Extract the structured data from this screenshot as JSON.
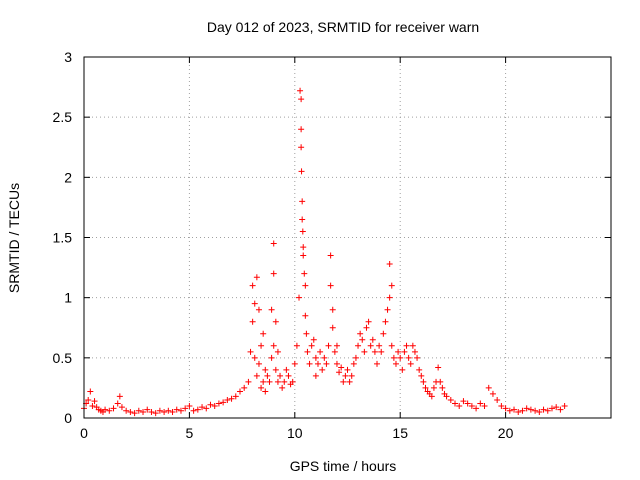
{
  "chart_data": {
    "type": "scatter",
    "title": "Day 012 of 2023, SRMTID for receiver warn",
    "xlabel": "GPS time / hours",
    "ylabel": "SRMTID / TECUs",
    "xlim": [
      0,
      25
    ],
    "ylim": [
      0,
      3
    ],
    "xticks": [
      0,
      5,
      10,
      15,
      20
    ],
    "yticks": [
      0,
      0.5,
      1,
      1.5,
      2,
      2.5,
      3
    ],
    "ytick_labels": [
      "0",
      "0.5",
      "1",
      "1.5",
      "2",
      "2.5",
      "3"
    ],
    "grid": true,
    "marker": "+",
    "series": [
      {
        "name": "SRMTID",
        "color": "#ff0000",
        "x": [
          0.0,
          0.1,
          0.2,
          0.3,
          0.4,
          0.5,
          0.6,
          0.7,
          0.8,
          0.9,
          1.0,
          1.2,
          1.4,
          1.6,
          1.7,
          1.8,
          2.0,
          2.2,
          2.4,
          2.6,
          2.8,
          3.0,
          3.2,
          3.4,
          3.6,
          3.8,
          4.0,
          4.2,
          4.4,
          4.6,
          4.8,
          5.0,
          5.2,
          5.4,
          5.6,
          5.8,
          6.0,
          6.2,
          6.4,
          6.6,
          6.8,
          7.0,
          7.2,
          7.4,
          7.6,
          7.8,
          7.9,
          8.0,
          8.0,
          8.1,
          8.1,
          8.2,
          8.2,
          8.3,
          8.3,
          8.4,
          8.4,
          8.5,
          8.5,
          8.6,
          8.6,
          8.7,
          8.8,
          8.9,
          8.9,
          9.0,
          9.0,
          9.0,
          9.1,
          9.1,
          9.2,
          9.2,
          9.3,
          9.4,
          9.5,
          9.6,
          9.7,
          9.8,
          9.9,
          10.0,
          10.1,
          10.2,
          10.25,
          10.3,
          10.3,
          10.3,
          10.32,
          10.35,
          10.35,
          10.38,
          10.4,
          10.4,
          10.45,
          10.5,
          10.5,
          10.55,
          10.6,
          10.7,
          10.8,
          10.9,
          11.0,
          11.0,
          11.1,
          11.2,
          11.3,
          11.4,
          11.5,
          11.6,
          11.7,
          11.7,
          11.8,
          11.8,
          11.9,
          12.0,
          12.0,
          12.1,
          12.2,
          12.3,
          12.4,
          12.5,
          12.6,
          12.7,
          12.8,
          12.9,
          13.0,
          13.1,
          13.2,
          13.3,
          13.4,
          13.5,
          13.6,
          13.7,
          13.8,
          13.9,
          14.0,
          14.1,
          14.2,
          14.3,
          14.4,
          14.5,
          14.5,
          14.6,
          14.6,
          14.7,
          14.8,
          14.9,
          15.0,
          15.1,
          15.2,
          15.3,
          15.4,
          15.5,
          15.6,
          15.7,
          15.8,
          15.9,
          16.0,
          16.1,
          16.2,
          16.3,
          16.4,
          16.5,
          16.6,
          16.7,
          16.8,
          16.9,
          17.0,
          17.1,
          17.2,
          17.4,
          17.6,
          17.8,
          18.0,
          18.2,
          18.4,
          18.6,
          18.8,
          19.0,
          19.2,
          19.4,
          19.6,
          19.8,
          20.0,
          20.2,
          20.4,
          20.6,
          20.8,
          21.0,
          21.2,
          21.4,
          21.6,
          21.8,
          22.0,
          22.2,
          22.4,
          22.6,
          22.8
        ],
        "y": [
          0.08,
          0.12,
          0.15,
          0.22,
          0.1,
          0.14,
          0.09,
          0.07,
          0.06,
          0.05,
          0.07,
          0.06,
          0.08,
          0.12,
          0.18,
          0.09,
          0.06,
          0.05,
          0.04,
          0.06,
          0.05,
          0.07,
          0.05,
          0.04,
          0.06,
          0.05,
          0.06,
          0.05,
          0.07,
          0.06,
          0.08,
          0.1,
          0.06,
          0.07,
          0.09,
          0.08,
          0.11,
          0.1,
          0.12,
          0.13,
          0.15,
          0.16,
          0.18,
          0.22,
          0.25,
          0.3,
          0.55,
          1.1,
          0.8,
          0.95,
          0.5,
          1.17,
          0.35,
          0.9,
          0.45,
          0.6,
          0.25,
          0.7,
          0.3,
          0.4,
          0.22,
          0.35,
          0.3,
          0.5,
          0.9,
          1.45,
          1.2,
          0.6,
          0.8,
          0.4,
          0.55,
          0.3,
          0.35,
          0.25,
          0.3,
          0.4,
          0.35,
          0.28,
          0.3,
          0.45,
          0.6,
          1.0,
          2.72,
          2.65,
          2.4,
          2.25,
          2.05,
          1.8,
          1.65,
          1.55,
          1.42,
          1.35,
          1.2,
          1.1,
          0.85,
          0.7,
          0.55,
          0.45,
          0.6,
          0.65,
          0.5,
          0.35,
          0.45,
          0.55,
          0.4,
          0.5,
          0.45,
          0.6,
          1.35,
          1.1,
          0.9,
          0.75,
          0.55,
          0.45,
          0.6,
          0.38,
          0.42,
          0.3,
          0.35,
          0.4,
          0.3,
          0.35,
          0.45,
          0.5,
          0.6,
          0.7,
          0.65,
          0.55,
          0.75,
          0.8,
          0.6,
          0.65,
          0.55,
          0.45,
          0.6,
          0.55,
          0.7,
          0.8,
          0.9,
          1.0,
          1.28,
          1.1,
          0.6,
          0.5,
          0.45,
          0.55,
          0.5,
          0.4,
          0.55,
          0.6,
          0.5,
          0.45,
          0.6,
          0.55,
          0.5,
          0.4,
          0.35,
          0.3,
          0.25,
          0.22,
          0.2,
          0.18,
          0.25,
          0.3,
          0.42,
          0.3,
          0.25,
          0.2,
          0.18,
          0.15,
          0.12,
          0.1,
          0.14,
          0.12,
          0.1,
          0.08,
          0.12,
          0.1,
          0.25,
          0.2,
          0.15,
          0.1,
          0.08,
          0.06,
          0.07,
          0.05,
          0.06,
          0.08,
          0.07,
          0.06,
          0.05,
          0.07,
          0.06,
          0.08,
          0.09,
          0.07,
          0.1
        ]
      }
    ]
  }
}
